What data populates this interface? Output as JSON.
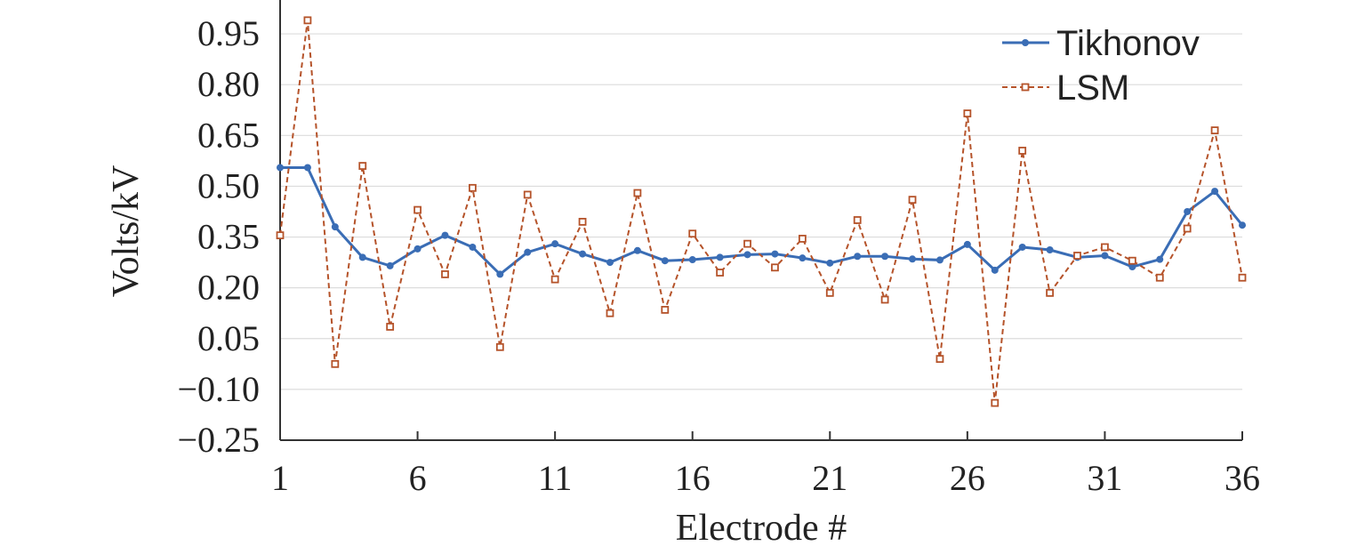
{
  "chart_data": {
    "type": "line",
    "xlabel": "Electrode #",
    "ylabel": "Volts/kV",
    "xlim": [
      1,
      36
    ],
    "ylim": [
      -0.25,
      1.05
    ],
    "x_ticks": [
      1,
      6,
      11,
      16,
      21,
      26,
      31,
      36
    ],
    "y_ticks": [
      -0.25,
      -0.1,
      0.05,
      0.2,
      0.35,
      0.5,
      0.65,
      0.8,
      0.95
    ],
    "y_tick_labels": [
      "−0.25",
      "−0.10",
      "0.05",
      "0.20",
      "0.35",
      "0.50",
      "0.65",
      "0.80",
      "0.95"
    ],
    "grid": "horizontal",
    "legend_position": "top-right",
    "x": [
      1,
      2,
      3,
      4,
      5,
      6,
      7,
      8,
      9,
      10,
      11,
      12,
      13,
      14,
      15,
      16,
      17,
      18,
      19,
      20,
      21,
      22,
      23,
      24,
      25,
      26,
      27,
      28,
      29,
      30,
      31,
      32,
      33,
      34,
      35,
      36
    ],
    "series": [
      {
        "name": "Tikhonov",
        "color": "#3a6db5",
        "marker": "circle",
        "line": "solid",
        "values": [
          0.555,
          0.555,
          0.38,
          0.29,
          0.265,
          0.315,
          0.355,
          0.32,
          0.24,
          0.305,
          0.33,
          0.3,
          0.275,
          0.31,
          0.28,
          0.283,
          0.29,
          0.298,
          0.3,
          0.288,
          0.273,
          0.293,
          0.293,
          0.285,
          0.282,
          0.328,
          0.252,
          0.32,
          0.312,
          0.29,
          0.295,
          0.262,
          0.284,
          0.425,
          0.485,
          0.385
        ]
      },
      {
        "name": "LSM",
        "color": "#b5532a",
        "marker": "square",
        "line": "dashed",
        "values": [
          0.355,
          0.99,
          -0.025,
          0.56,
          0.085,
          0.43,
          0.24,
          0.495,
          0.025,
          0.475,
          0.225,
          0.395,
          0.125,
          0.48,
          0.135,
          0.36,
          0.245,
          0.33,
          0.26,
          0.345,
          0.185,
          0.4,
          0.165,
          0.46,
          -0.01,
          0.715,
          -0.14,
          0.605,
          0.185,
          0.295,
          0.32,
          0.28,
          0.23,
          0.375,
          0.665,
          0.23
        ]
      }
    ]
  }
}
